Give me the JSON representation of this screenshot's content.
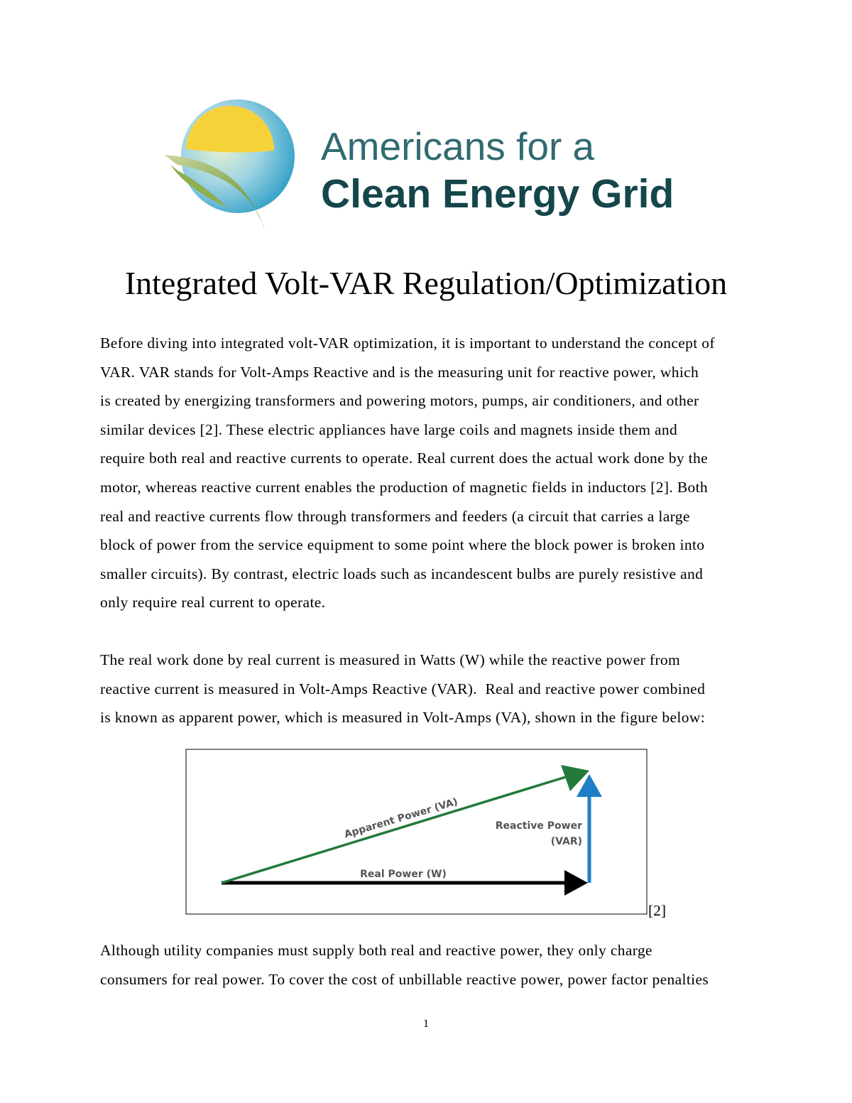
{
  "logo": {
    "line1": "Americans for a",
    "line2": "Clean Energy Grid"
  },
  "title": "Integrated Volt-VAR Regulation/Optimization",
  "paragraphs": [
    [
      "Before diving into integrated volt-VAR optimization, it is important to understand the concept of",
      "VAR. VAR stands for Volt-Amps Reactive and is the measuring unit for reactive power, which",
      "is created by energizing transformers and powering motors, pumps, air conditioners, and other",
      "similar devices [2]. These electric appliances have large coils and magnets inside them and",
      "require both real and reactive currents to operate. Real current does the actual work done by the",
      "motor, whereas reactive current enables the production of magnetic fields in inductors [2]. Both",
      "real and reactive currents flow through transformers and feeders (a circuit that carries a large",
      "block of power from the service equipment to some point where the block power is broken into",
      "smaller circuits). By contrast, electric loads such as incandescent bulbs are purely resistive and",
      "only require real current to operate."
    ],
    [
      "The real work done by real current is measured in Watts (W) while the reactive power from",
      "reactive current is measured in Volt-Amps Reactive (VAR).  Real and reactive power combined",
      "is known as apparent power, which is measured in Volt-Amps (VA), shown in the figure below:"
    ],
    [
      "Although utility companies must supply both real and reactive power, they only charge",
      "consumers for real power. To cover the cost of unbillable reactive power, power factor penalties"
    ]
  ],
  "figure": {
    "apparent_label": "Apparent Power (VA)",
    "reactive_label_1": "Reactive Power",
    "reactive_label_2": "(VAR)",
    "real_label": "Real Power (W)",
    "citation": "[2]"
  },
  "page_number": "1"
}
